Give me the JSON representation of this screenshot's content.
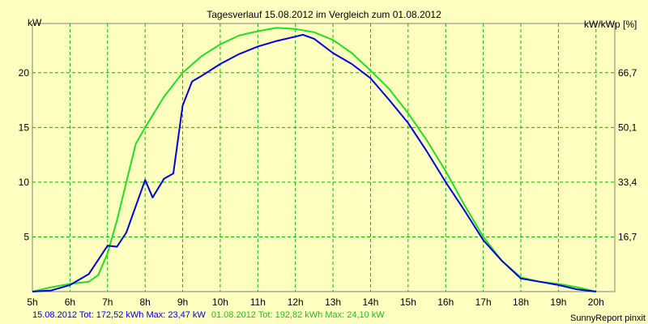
{
  "chart_data": {
    "type": "line",
    "title": "Tagesverlauf 15.08.2012 im Vergleich zum 01.08.2012",
    "ylabel_left": "kW",
    "ylabel_right": "kW/kWp [%]",
    "credit": "SunnyReport pinxit",
    "x_unit": "hour",
    "xlim": [
      5,
      20.5
    ],
    "ylim": [
      0,
      24.5
    ],
    "x_ticks": [
      5,
      6,
      7,
      8,
      9,
      10,
      11,
      12,
      13,
      14,
      15,
      16,
      17,
      18,
      19,
      20
    ],
    "x_tick_labels": [
      "5h",
      "6h",
      "7h",
      "8h",
      "9h",
      "10h",
      "11h",
      "12h",
      "13h",
      "14h",
      "15h",
      "16h",
      "17h",
      "18h",
      "19h",
      "20h"
    ],
    "y_ticks_left": [
      5,
      10,
      15,
      20
    ],
    "y_tick_labels_left": [
      "5",
      "10",
      "15",
      "20"
    ],
    "y_ticks_right": [
      5,
      10,
      15,
      20
    ],
    "y_tick_labels_right": [
      "16,7",
      "33,4",
      "50,1",
      "66,7"
    ],
    "grid": true,
    "series": [
      {
        "name": "15.08.2012",
        "summary": "15.08.2012 Tot: 172,52 kWh Max: 23,47 kW",
        "color": "#0000dd",
        "x": [
          5.0,
          5.5,
          6.0,
          6.5,
          7.0,
          7.25,
          7.5,
          7.75,
          8.0,
          8.2,
          8.5,
          8.75,
          9.0,
          9.25,
          9.5,
          10.0,
          10.5,
          11.0,
          11.5,
          12.0,
          12.2,
          12.5,
          13.0,
          13.5,
          14.0,
          14.5,
          15.0,
          15.5,
          16.0,
          16.5,
          17.0,
          17.5,
          18.0,
          18.5,
          19.0,
          19.5,
          20.0
        ],
        "y": [
          0.0,
          0.1,
          0.6,
          1.6,
          4.2,
          4.1,
          5.4,
          7.8,
          10.2,
          8.6,
          10.3,
          10.8,
          17.0,
          19.2,
          19.7,
          20.8,
          21.7,
          22.4,
          22.9,
          23.3,
          23.47,
          23.1,
          21.8,
          20.8,
          19.5,
          17.5,
          15.4,
          12.8,
          10.0,
          7.4,
          4.7,
          2.8,
          1.2,
          0.9,
          0.6,
          0.2,
          0.0
        ]
      },
      {
        "name": "01.08.2012",
        "summary": "01.08.2012 Tot: 192,82 kWh Max: 24,10 kW",
        "color": "#22dd22",
        "x": [
          5.0,
          5.5,
          6.0,
          6.5,
          6.75,
          7.0,
          7.25,
          7.5,
          7.75,
          8.0,
          8.5,
          9.0,
          9.5,
          10.0,
          10.5,
          11.0,
          11.5,
          12.0,
          12.5,
          13.0,
          13.5,
          14.0,
          14.5,
          15.0,
          15.5,
          16.0,
          16.5,
          17.0,
          17.5,
          18.0,
          18.5,
          19.0,
          19.5,
          20.0
        ],
        "y": [
          0.0,
          0.4,
          0.7,
          0.9,
          1.5,
          3.5,
          6.5,
          10.0,
          13.5,
          15.0,
          17.8,
          20.0,
          21.5,
          22.6,
          23.4,
          23.8,
          24.1,
          24.0,
          23.7,
          23.0,
          21.8,
          20.2,
          18.5,
          16.3,
          13.8,
          11.0,
          7.9,
          5.0,
          2.8,
          1.3,
          0.9,
          0.7,
          0.4,
          0.0
        ]
      }
    ]
  }
}
